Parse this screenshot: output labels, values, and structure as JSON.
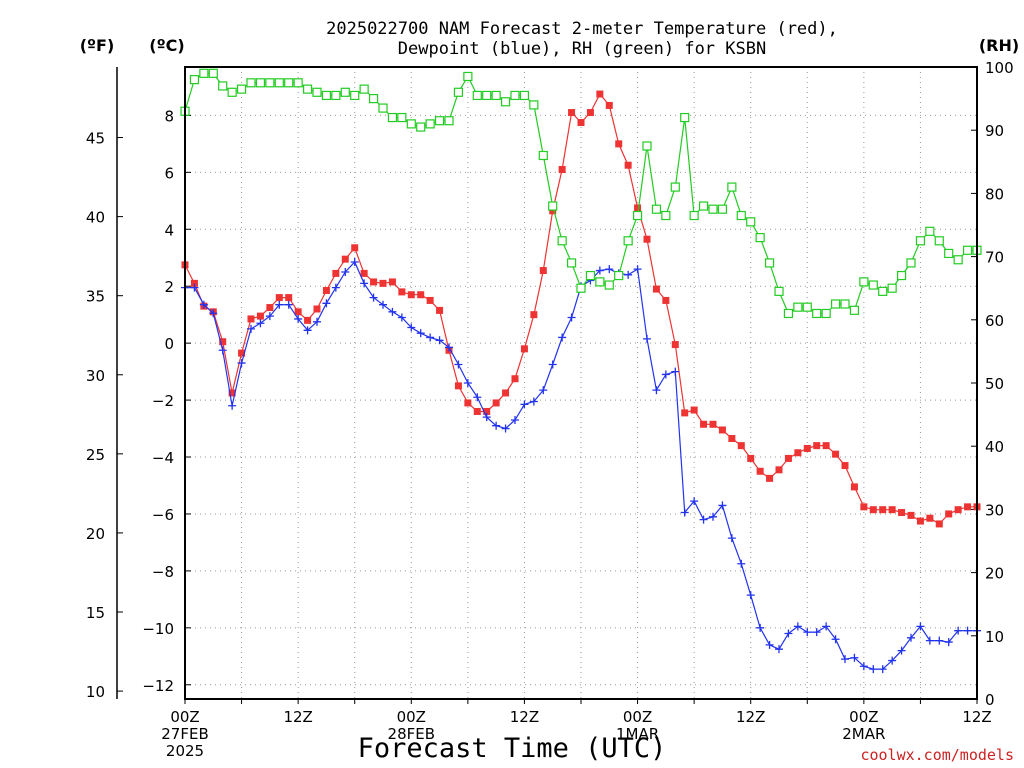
{
  "chart_data": {
    "type": "line",
    "title_line1": "2025022700 NAM Forecast 2-meter Temperature (red),",
    "title_line2": "Dewpoint (blue), RH (green) for KSBN",
    "xlabel": "Forecast Time (UTC)",
    "credit": "coolwx.com/models",
    "units": {
      "fahrenheit": "(ºF)",
      "celsius": "(ºC)",
      "rh": "(RH)"
    },
    "x_range_hours": [
      0,
      84
    ],
    "xticks": [
      {
        "hour": 0,
        "lines": [
          "00Z",
          "27FEB",
          "2025"
        ]
      },
      {
        "hour": 12,
        "lines": [
          "12Z"
        ]
      },
      {
        "hour": 24,
        "lines": [
          "00Z",
          "28FEB"
        ]
      },
      {
        "hour": 36,
        "lines": [
          "12Z"
        ]
      },
      {
        "hour": 48,
        "lines": [
          "00Z",
          "1MAR"
        ]
      },
      {
        "hour": 60,
        "lines": [
          "12Z"
        ]
      },
      {
        "hour": 72,
        "lines": [
          "00Z",
          "2MAR"
        ]
      },
      {
        "hour": 84,
        "lines": [
          "12Z"
        ]
      }
    ],
    "celsius_axis": {
      "range": [
        -12.5,
        9.7
      ],
      "ticks": [
        -12,
        -10,
        -8,
        -6,
        -4,
        -2,
        0,
        2,
        4,
        6,
        8
      ]
    },
    "fahrenheit_axis": {
      "range": [
        9.5,
        49.46
      ],
      "ticks": [
        10,
        15,
        20,
        25,
        30,
        35,
        40,
        45
      ]
    },
    "rh_axis": {
      "range": [
        0,
        100
      ],
      "ticks": [
        0,
        10,
        20,
        30,
        40,
        50,
        60,
        70,
        80,
        90,
        100
      ]
    },
    "series": [
      {
        "name": "Temperature",
        "color": "#ee3333",
        "marker": "filled-square",
        "axis": "celsius",
        "x": [
          0,
          1,
          2,
          3,
          4,
          5,
          6,
          7,
          8,
          9,
          10,
          11,
          12,
          13,
          14,
          15,
          16,
          17,
          18,
          19,
          20,
          21,
          22,
          23,
          24,
          25,
          26,
          27,
          28,
          29,
          30,
          31,
          32,
          33,
          34,
          35,
          36,
          37,
          38,
          39,
          40,
          41,
          42,
          43,
          44,
          45,
          46,
          47,
          48,
          49,
          50,
          51,
          52,
          53,
          54,
          55,
          56,
          57,
          58,
          59,
          60,
          61,
          62,
          63,
          64,
          65,
          66,
          67,
          68,
          69,
          70,
          71,
          72,
          73,
          74,
          75,
          76,
          77,
          78,
          79,
          80,
          81,
          82,
          83,
          84
        ],
        "y": [
          2.75,
          2.1,
          1.3,
          1.1,
          0.05,
          -1.75,
          -0.35,
          0.85,
          0.95,
          1.25,
          1.6,
          1.6,
          1.1,
          0.8,
          1.2,
          1.85,
          2.45,
          2.95,
          3.35,
          2.45,
          2.15,
          2.1,
          2.15,
          1.8,
          1.7,
          1.7,
          1.5,
          1.15,
          -0.25,
          -1.5,
          -2.1,
          -2.4,
          -2.4,
          -2.1,
          -1.75,
          -1.25,
          -0.2,
          1.0,
          2.55,
          4.65,
          6.1,
          8.1,
          7.75,
          8.1,
          8.75,
          8.35,
          7.0,
          6.25,
          4.75,
          3.65,
          1.9,
          1.5,
          -0.05,
          -2.45,
          -2.35,
          -2.85,
          -2.85,
          -3.05,
          -3.35,
          -3.6,
          -4.05,
          -4.5,
          -4.75,
          -4.45,
          -4.05,
          -3.85,
          -3.7,
          -3.6,
          -3.6,
          -3.9,
          -4.3,
          -5.05,
          -5.75,
          -5.85,
          -5.85,
          -5.85,
          -5.95,
          -6.05,
          -6.25,
          -6.15,
          -6.35,
          -6.0,
          -5.85,
          -5.75,
          -5.75
        ]
      },
      {
        "name": "Dewpoint",
        "color": "#2233ee",
        "marker": "plus",
        "axis": "celsius",
        "x": [
          0,
          1,
          2,
          3,
          4,
          5,
          6,
          7,
          8,
          9,
          10,
          11,
          12,
          13,
          14,
          15,
          16,
          17,
          18,
          19,
          20,
          21,
          22,
          23,
          24,
          25,
          26,
          27,
          28,
          29,
          30,
          31,
          32,
          33,
          34,
          35,
          36,
          37,
          38,
          39,
          40,
          41,
          42,
          43,
          44,
          45,
          46,
          47,
          48,
          49,
          50,
          51,
          52,
          53,
          54,
          55,
          56,
          57,
          58,
          59,
          60,
          61,
          62,
          63,
          64,
          65,
          66,
          67,
          68,
          69,
          70,
          71,
          72,
          73,
          74,
          75,
          76,
          77,
          78,
          79,
          80,
          81,
          82,
          83,
          84
        ],
        "y": [
          1.95,
          1.95,
          1.35,
          1.05,
          -0.25,
          -2.2,
          -0.7,
          0.5,
          0.7,
          0.95,
          1.35,
          1.35,
          0.85,
          0.45,
          0.75,
          1.4,
          1.95,
          2.5,
          2.85,
          2.1,
          1.6,
          1.35,
          1.1,
          0.9,
          0.55,
          0.35,
          0.2,
          0.1,
          -0.15,
          -0.75,
          -1.4,
          -1.9,
          -2.6,
          -2.9,
          -3.0,
          -2.7,
          -2.15,
          -2.05,
          -1.65,
          -0.75,
          0.2,
          0.9,
          2.0,
          2.2,
          2.55,
          2.6,
          2.45,
          2.4,
          2.6,
          0.15,
          -1.65,
          -1.1,
          -1.0,
          -5.95,
          -5.55,
          -6.2,
          -6.1,
          -5.7,
          -6.85,
          -7.75,
          -8.85,
          -10.0,
          -10.6,
          -10.75,
          -10.2,
          -9.95,
          -10.15,
          -10.15,
          -9.95,
          -10.4,
          -11.1,
          -11.05,
          -11.35,
          -11.45,
          -11.45,
          -11.15,
          -10.8,
          -10.35,
          -9.95,
          -10.45,
          -10.45,
          -10.5,
          -10.1,
          -10.1,
          -10.1
        ]
      },
      {
        "name": "RH",
        "color": "#22cc22",
        "marker": "open-square",
        "axis": "rh",
        "x": [
          0,
          1,
          2,
          3,
          4,
          5,
          6,
          7,
          8,
          9,
          10,
          11,
          12,
          13,
          14,
          15,
          16,
          17,
          18,
          19,
          20,
          21,
          22,
          23,
          24,
          25,
          26,
          27,
          28,
          29,
          30,
          31,
          32,
          33,
          34,
          35,
          36,
          37,
          38,
          39,
          40,
          41,
          42,
          43,
          44,
          45,
          46,
          47,
          48,
          49,
          50,
          51,
          52,
          53,
          54,
          55,
          56,
          57,
          58,
          59,
          60,
          61,
          62,
          63,
          64,
          65,
          66,
          67,
          68,
          69,
          70,
          71,
          72,
          73,
          74,
          75,
          76,
          77,
          78,
          79,
          80,
          81,
          82,
          83,
          84
        ],
        "y": [
          93,
          98,
          99,
          99,
          97,
          96,
          96.5,
          97.5,
          97.5,
          97.5,
          97.5,
          97.5,
          97.5,
          96.5,
          96,
          95.5,
          95.5,
          96,
          95.5,
          96.5,
          95,
          93.5,
          92,
          92,
          91,
          90.5,
          91,
          91.5,
          91.5,
          96,
          98.5,
          95.5,
          95.5,
          95.5,
          94.5,
          95.5,
          95.5,
          94,
          86,
          78,
          72.5,
          69,
          65,
          67,
          66,
          65.5,
          67,
          72.5,
          76.5,
          87.5,
          77.5,
          76.5,
          81,
          92,
          76.5,
          78,
          77.5,
          77.5,
          81,
          76.5,
          75.5,
          73,
          69,
          64.5,
          61,
          62,
          62,
          61,
          61,
          62.5,
          62.5,
          61.5,
          66,
          65.5,
          64.5,
          65,
          67,
          69,
          72.5,
          74,
          72.5,
          70.5,
          69.5,
          71,
          71
        ]
      }
    ]
  }
}
